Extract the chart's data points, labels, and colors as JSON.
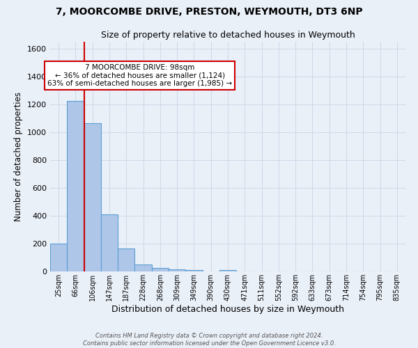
{
  "title_line1": "7, MOORCOMBE DRIVE, PRESTON, WEYMOUTH, DT3 6NP",
  "title_line2": "Size of property relative to detached houses in Weymouth",
  "xlabel": "Distribution of detached houses by size in Weymouth",
  "ylabel": "Number of detached properties",
  "categories": [
    "25sqm",
    "66sqm",
    "106sqm",
    "147sqm",
    "187sqm",
    "228sqm",
    "268sqm",
    "309sqm",
    "349sqm",
    "390sqm",
    "430sqm",
    "471sqm",
    "511sqm",
    "552sqm",
    "592sqm",
    "633sqm",
    "673sqm",
    "714sqm",
    "754sqm",
    "795sqm",
    "835sqm"
  ],
  "values": [
    200,
    1225,
    1065,
    408,
    165,
    52,
    25,
    15,
    12,
    0,
    12,
    0,
    0,
    0,
    0,
    0,
    0,
    0,
    0,
    0,
    0
  ],
  "bar_color": "#aec6e8",
  "bar_edge_color": "#5a9fd4",
  "red_line_x": 1.5,
  "annotation_text": "7 MOORCOMBE DRIVE: 98sqm\n← 36% of detached houses are smaller (1,124)\n63% of semi-detached houses are larger (1,985) →",
  "annotation_box_color": "#ffffff",
  "annotation_box_edge_color": "#cc0000",
  "grid_color": "#d0d8e8",
  "bg_color": "#eaf0f8",
  "ylim": [
    0,
    1650
  ],
  "footer_line1": "Contains HM Land Registry data © Crown copyright and database right 2024.",
  "footer_line2": "Contains public sector information licensed under the Open Government Licence v3.0."
}
